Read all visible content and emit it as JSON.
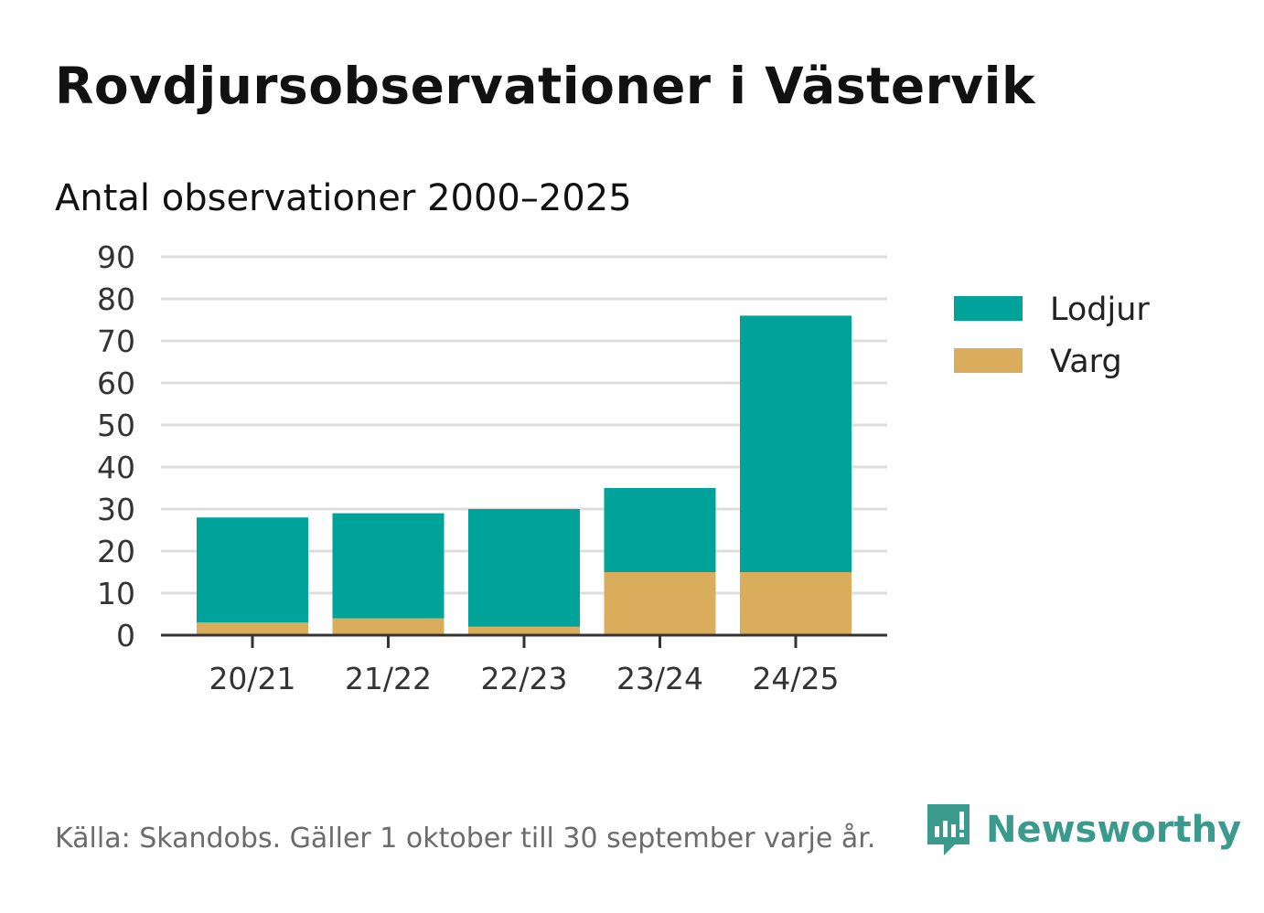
{
  "header": {
    "title": "Rovdjursobservationer i Västervik",
    "subtitle": "Antal observationer 2000–2025"
  },
  "footer": {
    "source": "Källa: Skandobs. Gäller 1 oktober till 30 september varje år.",
    "brand": "Newsworthy",
    "brand_icon": "newsworthy-logo-icon"
  },
  "colors": {
    "lodjur": "#00a39a",
    "varg": "#daad5c",
    "grid": "#dddddd",
    "axis": "#333333",
    "brand": "#3a9a8c"
  },
  "chart_data": {
    "type": "bar",
    "stacked": true,
    "categories": [
      "20/21",
      "21/22",
      "22/23",
      "23/24",
      "24/25"
    ],
    "series": [
      {
        "name": "Varg",
        "values": [
          3,
          4,
          2,
          15,
          15
        ]
      },
      {
        "name": "Lodjur",
        "values": [
          25,
          25,
          28,
          20,
          61
        ]
      }
    ],
    "legend": [
      "Lodjur",
      "Varg"
    ],
    "legend_position": "right",
    "ylim": [
      0,
      90
    ],
    "yticks": [
      0,
      10,
      20,
      30,
      40,
      50,
      60,
      70,
      80,
      90
    ],
    "grid": true,
    "xlabel": "",
    "ylabel": ""
  }
}
